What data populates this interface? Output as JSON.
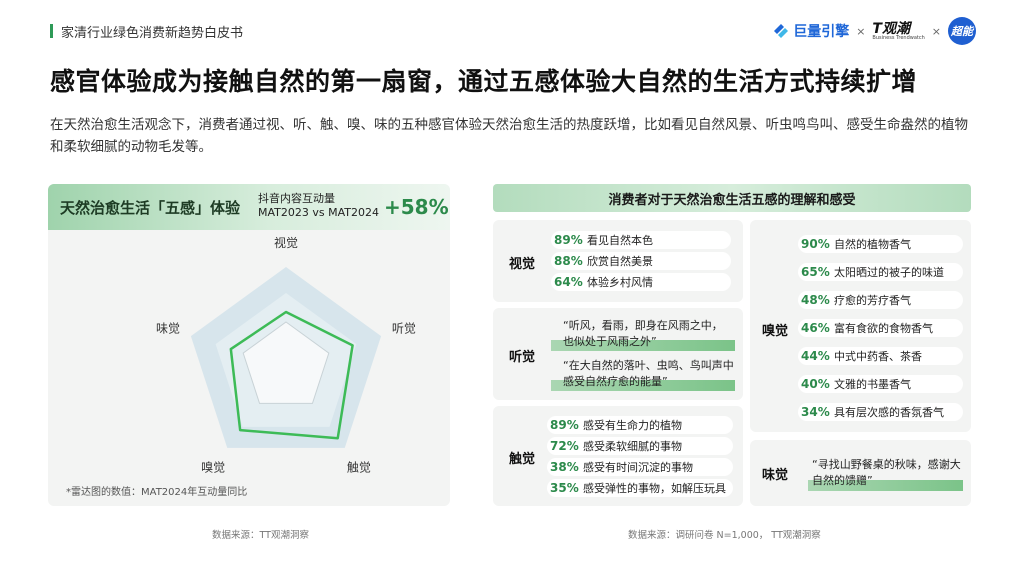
{
  "header": {
    "report_title": "家清行业绿色消费新趋势白皮书"
  },
  "logos": {
    "juliang": "巨量引擎",
    "tt": "T观潮",
    "tt_sub": "Business Trendwatch",
    "sep": "×",
    "chaoneng": "超能"
  },
  "title": "感官体验成为接触自然的第一扇窗，通过五感体验大自然的生活方式持续扩增",
  "description": "在天然治愈生活观念下，消费者通过视、听、触、嗅、味的五种感官体验天然治愈生活的热度跃增，比如看见自然风景、听虫鸣鸟叫、感受生命盎然的植物和柔软细腻的动物毛发等。",
  "left_panel": {
    "title": "天然治愈生活「五感」体验",
    "sub_line1": "抖音内容互动量",
    "sub_line2": "MAT2023 vs MAT2024",
    "growth": "+58%",
    "note": "*雷达图的数值：MAT2024年互动量同比",
    "source": "数据来源：TT观潮洞察"
  },
  "chart_data": {
    "type": "radar",
    "axes": [
      "视觉",
      "听觉",
      "触觉",
      "嗅觉",
      "味觉"
    ],
    "values": [
      0.55,
      0.7,
      0.88,
      0.78,
      0.58
    ],
    "max": 1.0,
    "series_color": "#3dbb57"
  },
  "right_panel": {
    "title": "消费者对于天然治愈生活五感的理解和感受",
    "source": "数据来源：调研问卷 N=1,000， TT观潮洞察",
    "sight": {
      "label": "视觉",
      "items": [
        {
          "pct": "89%",
          "text": "看见自然本色"
        },
        {
          "pct": "88%",
          "text": "欣赏自然美景"
        },
        {
          "pct": "64%",
          "text": "体验乡村风情"
        }
      ]
    },
    "hearing": {
      "label": "听觉",
      "quotes": [
        {
          "l1": "“听风，看雨，即身在风雨之中，",
          "l2": "也似处于风雨之外”"
        },
        {
          "l1": "“在大自然的落叶、虫鸣、鸟叫声中",
          "l2": "感受自然疗愈的能量”"
        }
      ]
    },
    "touch": {
      "label": "触觉",
      "items": [
        {
          "pct": "89%",
          "text": "感受有生命力的植物"
        },
        {
          "pct": "72%",
          "text": "感受柔软细腻的事物"
        },
        {
          "pct": "38%",
          "text": "感受有时间沉淀的事物"
        },
        {
          "pct": "35%",
          "text": "感受弹性的事物，如解压玩具"
        }
      ]
    },
    "smell": {
      "label": "嗅觉",
      "items": [
        {
          "pct": "90%",
          "text": "自然的植物香气"
        },
        {
          "pct": "65%",
          "text": "太阳晒过的被子的味道"
        },
        {
          "pct": "48%",
          "text": "疗愈的芳疗香气"
        },
        {
          "pct": "46%",
          "text": "富有食欲的食物香气"
        },
        {
          "pct": "44%",
          "text": "中式中药香、茶香"
        },
        {
          "pct": "40%",
          "text": "文雅的书墨香气"
        },
        {
          "pct": "34%",
          "text": "具有层次感的香氛香气"
        }
      ]
    },
    "taste": {
      "label": "味觉",
      "quote": {
        "l1": "“寻找山野餐桌的秋味，感谢大",
        "l2": "自然的馈赠”"
      }
    }
  }
}
